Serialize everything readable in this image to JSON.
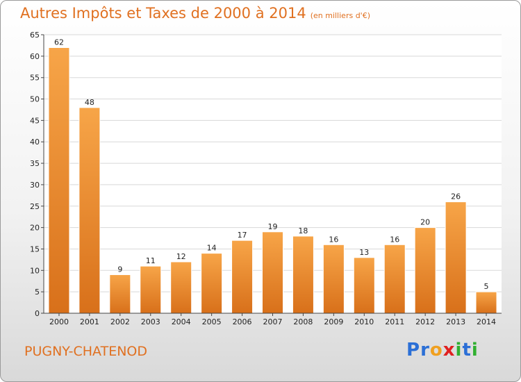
{
  "header": {
    "title": "Autres Impôts et Taxes de 2000 à 2014",
    "subtitle": "(en milliers d'€)"
  },
  "footer": {
    "city": "PUGNY-CHATENOD",
    "logo_letters": [
      {
        "char": "P",
        "color": "#2b6fd6"
      },
      {
        "char": "r",
        "color": "#2b6fd6"
      },
      {
        "char": "o",
        "color": "#f0a020"
      },
      {
        "char": "x",
        "color": "#e02020"
      },
      {
        "char": "i",
        "color": "#30b030"
      },
      {
        "char": "t",
        "color": "#2b6fd6"
      },
      {
        "char": "i",
        "color": "#30b030"
      }
    ]
  },
  "chart_data": {
    "type": "bar",
    "title": "Autres Impôts et Taxes de 2000 à 2014",
    "subtitle": "(en milliers d'€)",
    "categories": [
      "2000",
      "2001",
      "2002",
      "2003",
      "2004",
      "2005",
      "2006",
      "2007",
      "2008",
      "2009",
      "2010",
      "2011",
      "2012",
      "2013",
      "2014"
    ],
    "values": [
      62,
      48,
      9,
      11,
      12,
      14,
      17,
      19,
      18,
      16,
      13,
      16,
      20,
      26,
      5
    ],
    "xlabel": "",
    "ylabel": "",
    "ylim": [
      0,
      65
    ],
    "yticks": [
      0,
      5,
      10,
      15,
      20,
      25,
      30,
      35,
      40,
      45,
      50,
      55,
      60,
      65
    ],
    "grid": true,
    "bar_color": "#f0922a",
    "bar_color_dark": "#d06a10",
    "grid_color": "#d8d8d8"
  }
}
